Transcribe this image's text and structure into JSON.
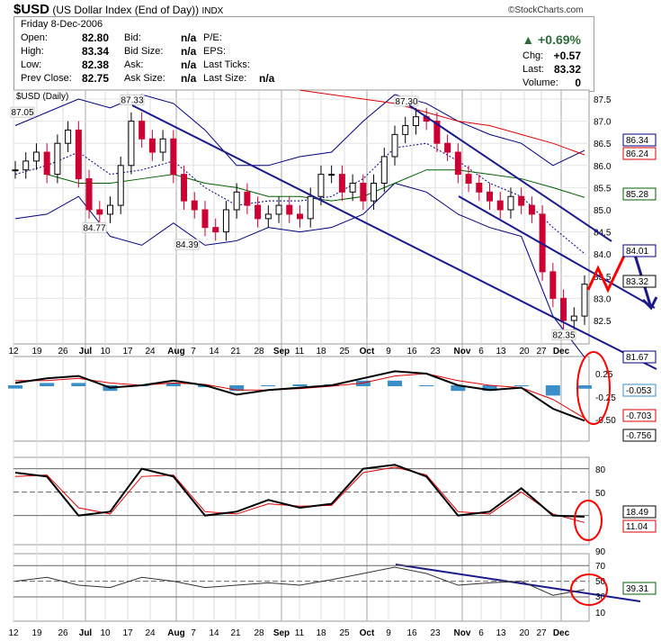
{
  "header": {
    "symbol": "$USD",
    "name": "(US Dollar Index (End of Day))",
    "exchange": "INDX",
    "brand": "©StockCharts.com",
    "date": "Friday  8-Dec-2006",
    "fields": [
      {
        "label": "Open:",
        "value": "82.80"
      },
      {
        "label": "High:",
        "value": "83.34"
      },
      {
        "label": "Low:",
        "value": "82.38"
      },
      {
        "label": "Prev Close:",
        "value": "82.75"
      },
      {
        "label": "Bid:",
        "value": "n/a"
      },
      {
        "label": "Bid Size:",
        "value": "n/a"
      },
      {
        "label": "Ask:",
        "value": "n/a"
      },
      {
        "label": "Ask Size:",
        "value": "n/a"
      },
      {
        "label": "P/E:",
        "value": ""
      },
      {
        "label": "EPS:",
        "value": ""
      },
      {
        "label": "Last Ticks:",
        "value": ""
      },
      {
        "label": "Last Size:",
        "value": "n/a"
      }
    ],
    "change_pct": "+0.69%",
    "chg_label": "Chg:",
    "chg": "+0.57",
    "last_label": "Last:",
    "last": "83.32",
    "volume_label": "Volume:",
    "volume": "0"
  },
  "chart_data": {
    "type": "line",
    "panel_label": "$USD (Daily)",
    "x_tick_labels": [
      "12",
      "19",
      "26",
      "Jul",
      "10",
      "17",
      "24",
      "Aug",
      "7",
      "14",
      "21",
      "28",
      "Sep",
      "11",
      "18",
      "25",
      "Oct",
      "9",
      "16",
      "23",
      "Nov",
      "6",
      "13",
      "20",
      "27",
      "Dec"
    ],
    "price_ticks": [
      87.5,
      87.0,
      86.5,
      86.0,
      85.5,
      85.0,
      84.5,
      84.0,
      83.5,
      83.0,
      82.5
    ],
    "price_closes": [
      85.9,
      86.1,
      86.3,
      85.8,
      86.5,
      86.8,
      85.7,
      85.0,
      84.9,
      85.1,
      86.0,
      87.0,
      86.6,
      86.3,
      86.6,
      85.8,
      85.2,
      85.0,
      84.6,
      84.5,
      85.0,
      85.4,
      85.1,
      84.8,
      84.9,
      85.1,
      84.9,
      84.8,
      85.3,
      85.8,
      85.8,
      85.4,
      85.6,
      85.2,
      85.6,
      86.2,
      86.7,
      86.9,
      87.1,
      87.0,
      86.5,
      86.3,
      85.8,
      85.6,
      85.4,
      85.2,
      85.0,
      85.3,
      85.1,
      84.9,
      83.6,
      83.0,
      82.5,
      82.6,
      83.32
    ],
    "annotations": [
      {
        "label": "87.05",
        "value": 87.05
      },
      {
        "label": "84.77",
        "value": 84.77
      },
      {
        "label": "87.33",
        "value": 87.33
      },
      {
        "label": "84.39",
        "value": 84.39
      },
      {
        "label": "87.30",
        "value": 87.3
      },
      {
        "label": "82.35",
        "value": 82.35
      }
    ],
    "overlays": {
      "bb_upper": [
        86.9,
        87.2,
        87.5,
        87.3,
        87.6,
        87.4,
        86.8,
        86.0,
        86.0,
        86.2,
        86.3,
        87.0,
        87.6,
        87.4,
        87.0,
        86.7,
        86.5,
        86.0,
        86.34
      ],
      "bb_mid": [
        85.8,
        86.0,
        86.3,
        85.8,
        85.9,
        86.1,
        85.5,
        85.1,
        85.2,
        85.2,
        85.3,
        85.7,
        86.4,
        86.5,
        86.1,
        85.6,
        85.3,
        84.6,
        84.01
      ],
      "bb_lower": [
        84.8,
        84.9,
        85.3,
        84.4,
        84.2,
        84.7,
        84.2,
        84.3,
        84.6,
        84.5,
        84.6,
        84.9,
        85.6,
        85.4,
        84.9,
        84.6,
        84.4,
        82.6,
        81.67
      ],
      "ma_green": [
        null,
        85.8,
        85.6,
        85.6,
        85.7,
        85.8,
        85.6,
        85.5,
        85.3,
        85.3,
        85.2,
        85.3,
        85.6,
        85.9,
        85.9,
        85.8,
        85.7,
        85.5,
        85.28
      ],
      "ma_red": [
        null,
        null,
        null,
        null,
        null,
        null,
        null,
        null,
        null,
        87.7,
        87.6,
        87.5,
        87.4,
        87.2,
        87.0,
        86.9,
        86.7,
        86.5,
        86.24
      ]
    },
    "last_value_tags": [
      {
        "label": "86.34",
        "color": "#000080"
      },
      {
        "label": "86.24",
        "color": "#e00000"
      },
      {
        "label": "85.28",
        "color": "#006000"
      },
      {
        "label": "84.01",
        "color": "#000080"
      },
      {
        "label": "83.32",
        "color": "#000000"
      },
      {
        "label": "81.67",
        "color": "#000080"
      }
    ],
    "macd": {
      "ticks": [
        "0.25",
        "-0.25",
        "-0.50"
      ],
      "macd": [
        0.05,
        0.15,
        0.2,
        -0.05,
        0.0,
        0.1,
        0.0,
        -0.2,
        -0.1,
        -0.05,
        0.0,
        0.15,
        0.3,
        0.25,
        0.0,
        -0.1,
        -0.05,
        -0.5,
        -0.756
      ],
      "signal": [
        0.1,
        0.1,
        0.15,
        0.05,
        0.0,
        0.05,
        0.02,
        -0.1,
        -0.1,
        -0.07,
        -0.02,
        0.05,
        0.2,
        0.25,
        0.1,
        0.0,
        -0.05,
        -0.3,
        -0.703
      ],
      "tags": [
        {
          "label": "-0.053",
          "color": "#3a8fc8"
        },
        {
          "label": "-0.703",
          "color": "#e00000"
        },
        {
          "label": "-0.756",
          "color": "#000000"
        }
      ]
    },
    "stoch": {
      "ticks": [
        "80",
        "50"
      ],
      "k": [
        75,
        70,
        20,
        25,
        80,
        70,
        20,
        25,
        40,
        30,
        35,
        80,
        85,
        70,
        20,
        25,
        55,
        20,
        18.49
      ],
      "d": [
        70,
        72,
        30,
        22,
        70,
        72,
        25,
        22,
        35,
        32,
        33,
        75,
        82,
        72,
        25,
        22,
        50,
        22,
        11.04
      ],
      "tags": [
        {
          "label": "18.49",
          "color": "#000000"
        },
        {
          "label": "11.04",
          "color": "#e00000"
        }
      ]
    },
    "rsi": {
      "ticks": [
        "90",
        "70",
        "50",
        "30",
        "10"
      ],
      "values": [
        50,
        55,
        45,
        42,
        55,
        50,
        42,
        45,
        48,
        45,
        52,
        60,
        68,
        60,
        45,
        48,
        50,
        32,
        39.31
      ],
      "tags": [
        {
          "label": "39.31",
          "color": "#006000"
        }
      ]
    },
    "colors": {
      "up": "#ffffff",
      "down": "#cc0033",
      "bands": "#000080",
      "ma50": "#006000",
      "ma200": "#e00000",
      "hist": "#3a8fc8",
      "annotation": "#ff0000",
      "trendline": "#1a1a8c"
    }
  }
}
